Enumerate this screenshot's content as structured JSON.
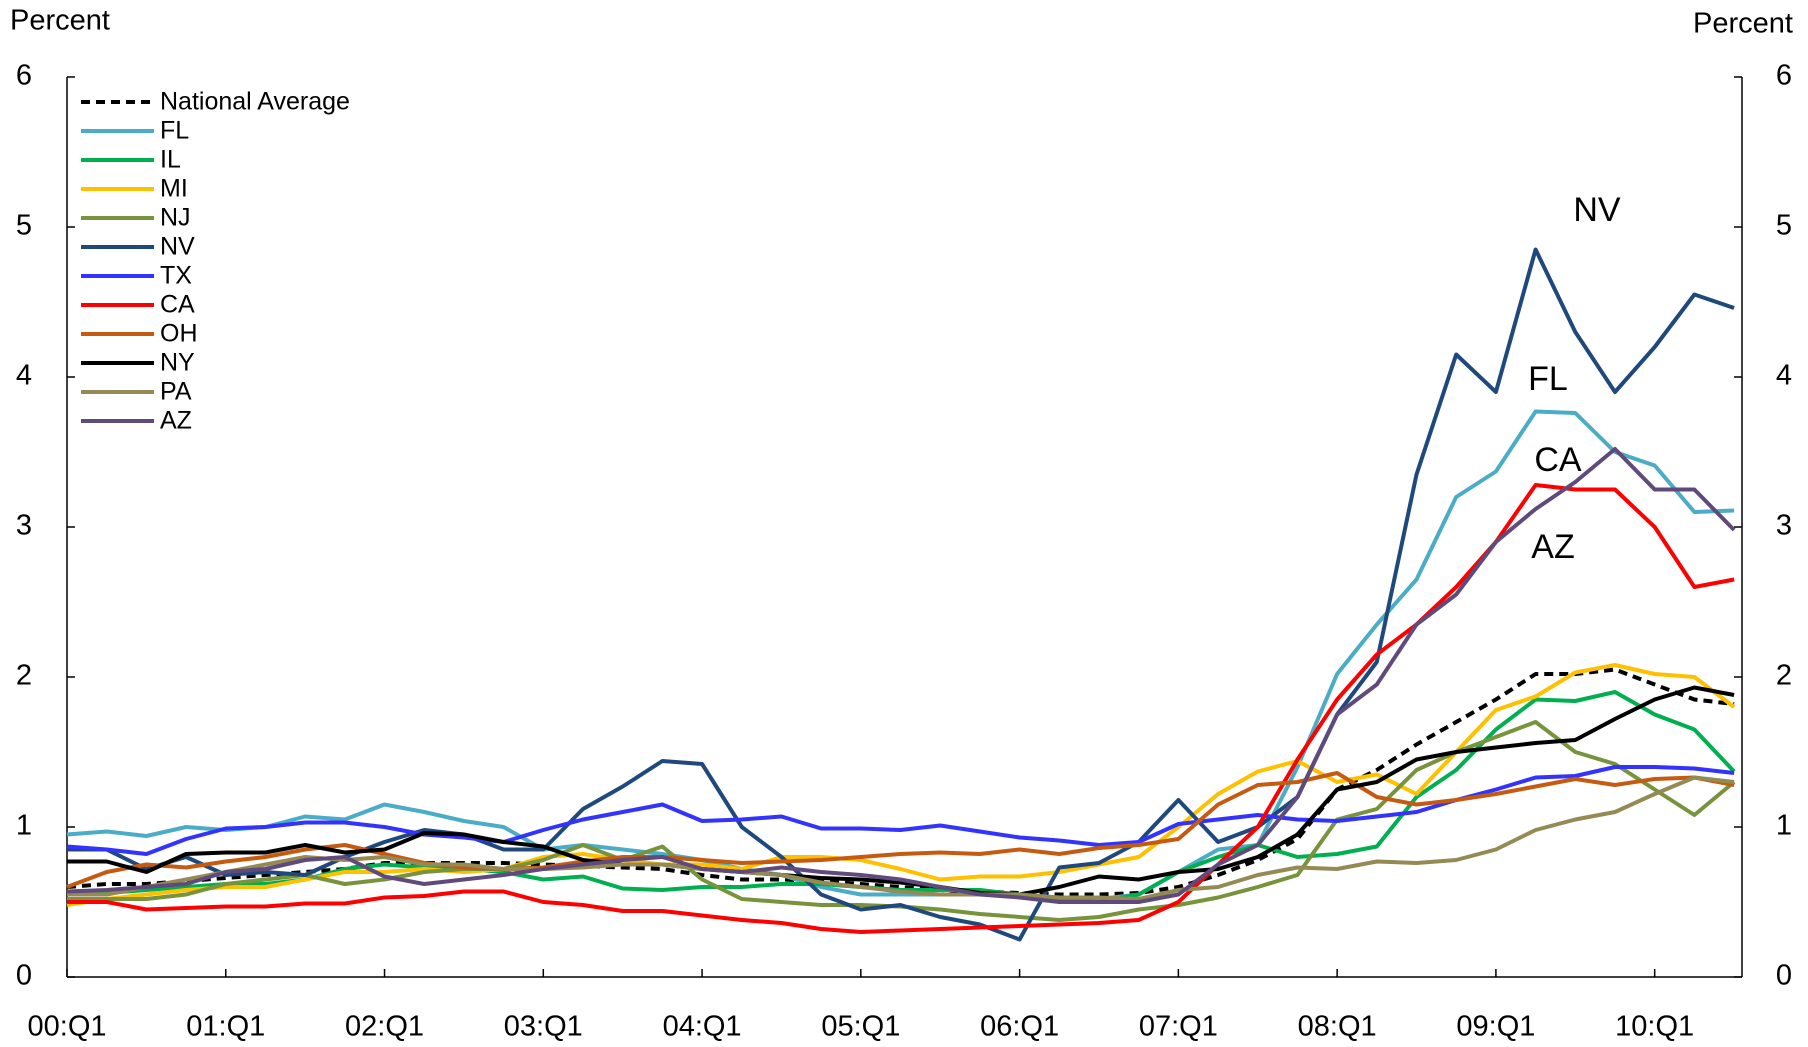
{
  "chart_data": {
    "type": "line",
    "y_label": "Percent",
    "y2_label": "Percent",
    "categories": [
      "00:Q1",
      null,
      null,
      null,
      "01:Q1",
      null,
      null,
      null,
      "02:Q1",
      null,
      null,
      null,
      "03:Q1",
      null,
      null,
      null,
      "04:Q1",
      null,
      null,
      null,
      "05:Q1",
      null,
      null,
      null,
      "06:Q1",
      null,
      null,
      null,
      "07:Q1",
      null,
      null,
      null,
      "08:Q1",
      null,
      null,
      null,
      "09:Q1",
      null,
      null,
      null,
      "10:Q1",
      null,
      null
    ],
    "ylim": [
      0,
      6
    ],
    "yticks": [
      0,
      1,
      2,
      3,
      4,
      5,
      6
    ],
    "y2lim": [
      0,
      6
    ],
    "y2ticks": [
      0,
      1,
      2,
      3,
      4,
      5,
      6
    ],
    "legend": "upper left",
    "series": [
      {
        "name": "National Average",
        "color": "#000000",
        "dashed": true,
        "values": [
          0.6,
          0.62,
          0.62,
          0.64,
          0.66,
          0.68,
          0.7,
          0.72,
          0.76,
          0.76,
          0.76,
          0.76,
          0.75,
          0.74,
          0.73,
          0.72,
          0.68,
          0.65,
          0.65,
          0.64,
          0.62,
          0.6,
          0.58,
          0.57,
          0.56,
          0.55,
          0.55,
          0.56,
          0.6,
          0.68,
          0.78,
          0.92,
          1.25,
          1.38,
          1.55,
          1.7,
          1.85,
          2.02,
          2.02,
          2.05,
          1.95,
          1.85,
          1.82
        ]
      },
      {
        "name": "FL",
        "color": "#4bacc6",
        "values": [
          0.95,
          0.97,
          0.94,
          1.0,
          0.98,
          1.0,
          1.07,
          1.05,
          1.15,
          1.1,
          1.04,
          1.0,
          0.85,
          0.88,
          0.85,
          0.82,
          0.78,
          0.72,
          0.68,
          0.6,
          0.55,
          0.55,
          0.55,
          0.55,
          0.55,
          0.52,
          0.52,
          0.55,
          0.7,
          0.85,
          0.88,
          1.4,
          2.02,
          2.35,
          2.65,
          3.2,
          3.37,
          3.77,
          3.76,
          3.5,
          3.41,
          3.1,
          3.11
        ]
      },
      {
        "name": "IL",
        "color": "#00b050",
        "values": [
          0.55,
          0.56,
          0.58,
          0.6,
          0.62,
          0.62,
          0.65,
          0.72,
          0.75,
          0.73,
          0.72,
          0.7,
          0.65,
          0.67,
          0.59,
          0.58,
          0.6,
          0.6,
          0.62,
          0.62,
          0.6,
          0.58,
          0.58,
          0.58,
          0.55,
          0.52,
          0.5,
          0.55,
          0.7,
          0.8,
          0.88,
          0.8,
          0.82,
          0.87,
          1.2,
          1.38,
          1.65,
          1.85,
          1.84,
          1.9,
          1.75,
          1.65,
          1.37
        ]
      },
      {
        "name": "MI",
        "color": "#ffc000",
        "values": [
          0.48,
          0.52,
          0.55,
          0.58,
          0.6,
          0.6,
          0.65,
          0.7,
          0.7,
          0.72,
          0.7,
          0.72,
          0.8,
          0.82,
          0.78,
          0.75,
          0.75,
          0.72,
          0.8,
          0.8,
          0.78,
          0.72,
          0.65,
          0.67,
          0.67,
          0.7,
          0.75,
          0.8,
          1.0,
          1.22,
          1.37,
          1.44,
          1.3,
          1.35,
          1.22,
          1.5,
          1.78,
          1.87,
          2.03,
          2.08,
          2.02,
          2.0,
          1.8
        ]
      },
      {
        "name": "NJ",
        "color": "#77933c",
        "values": [
          0.52,
          0.52,
          0.52,
          0.55,
          0.62,
          0.65,
          0.68,
          0.62,
          0.65,
          0.7,
          0.72,
          0.72,
          0.78,
          0.88,
          0.78,
          0.87,
          0.65,
          0.52,
          0.5,
          0.48,
          0.48,
          0.47,
          0.45,
          0.42,
          0.4,
          0.38,
          0.4,
          0.45,
          0.48,
          0.53,
          0.6,
          0.68,
          1.05,
          1.12,
          1.38,
          1.5,
          1.6,
          1.7,
          1.5,
          1.42,
          1.25,
          1.08,
          1.3
        ]
      },
      {
        "name": "NV",
        "color": "#1f497d",
        "values": [
          0.85,
          0.85,
          0.72,
          0.8,
          0.68,
          0.7,
          0.68,
          0.8,
          0.9,
          0.98,
          0.95,
          0.85,
          0.85,
          1.12,
          1.27,
          1.44,
          1.42,
          1.0,
          0.8,
          0.55,
          0.45,
          0.48,
          0.4,
          0.35,
          0.25,
          0.73,
          0.76,
          0.9,
          1.18,
          0.9,
          1.0,
          1.2,
          1.75,
          2.1,
          3.35,
          4.15,
          3.9,
          4.85,
          4.3,
          3.9,
          4.2,
          4.55,
          4.46
        ]
      },
      {
        "name": "TX",
        "color": "#3333ff",
        "values": [
          0.87,
          0.85,
          0.82,
          0.92,
          0.99,
          1.0,
          1.03,
          1.03,
          1.0,
          0.95,
          0.93,
          0.9,
          0.98,
          1.05,
          1.1,
          1.15,
          1.04,
          1.05,
          1.07,
          0.99,
          0.99,
          0.98,
          1.01,
          0.97,
          0.93,
          0.91,
          0.88,
          0.9,
          1.02,
          1.05,
          1.08,
          1.05,
          1.04,
          1.07,
          1.1,
          1.18,
          1.25,
          1.33,
          1.34,
          1.4,
          1.4,
          1.39,
          1.36
        ]
      },
      {
        "name": "CA",
        "color": "#ff0000",
        "values": [
          0.5,
          0.5,
          0.45,
          0.46,
          0.47,
          0.47,
          0.49,
          0.49,
          0.53,
          0.54,
          0.57,
          0.57,
          0.5,
          0.48,
          0.44,
          0.44,
          0.41,
          0.38,
          0.36,
          0.32,
          0.3,
          0.31,
          0.32,
          0.33,
          0.34,
          0.35,
          0.36,
          0.38,
          0.5,
          0.75,
          1.0,
          1.45,
          1.85,
          2.15,
          2.35,
          2.6,
          2.9,
          3.28,
          3.25,
          3.25,
          3.0,
          2.6,
          2.65
        ]
      },
      {
        "name": "OH",
        "color": "#c55a11",
        "values": [
          0.6,
          0.7,
          0.75,
          0.73,
          0.77,
          0.8,
          0.85,
          0.88,
          0.82,
          0.76,
          0.73,
          0.72,
          0.73,
          0.77,
          0.8,
          0.8,
          0.78,
          0.76,
          0.77,
          0.78,
          0.8,
          0.82,
          0.83,
          0.82,
          0.85,
          0.82,
          0.86,
          0.88,
          0.92,
          1.15,
          1.28,
          1.3,
          1.36,
          1.2,
          1.15,
          1.18,
          1.22,
          1.27,
          1.32,
          1.28,
          1.32,
          1.33,
          1.28
        ]
      },
      {
        "name": "NY",
        "color": "#000000",
        "values": [
          0.77,
          0.77,
          0.7,
          0.82,
          0.83,
          0.83,
          0.88,
          0.83,
          0.85,
          0.96,
          0.95,
          0.9,
          0.87,
          0.78,
          0.75,
          0.75,
          0.72,
          0.7,
          0.68,
          0.66,
          0.65,
          0.63,
          0.6,
          0.56,
          0.55,
          0.6,
          0.67,
          0.65,
          0.7,
          0.72,
          0.8,
          0.95,
          1.25,
          1.3,
          1.45,
          1.5,
          1.53,
          1.56,
          1.58,
          1.72,
          1.85,
          1.93,
          1.88
        ]
      },
      {
        "name": "PA",
        "color": "#948a54",
        "values": [
          0.55,
          0.55,
          0.6,
          0.65,
          0.7,
          0.75,
          0.8,
          0.78,
          0.8,
          0.75,
          0.75,
          0.72,
          0.72,
          0.73,
          0.75,
          0.75,
          0.72,
          0.7,
          0.68,
          0.63,
          0.6,
          0.57,
          0.55,
          0.55,
          0.55,
          0.53,
          0.53,
          0.52,
          0.58,
          0.6,
          0.68,
          0.73,
          0.72,
          0.77,
          0.76,
          0.78,
          0.85,
          0.98,
          1.05,
          1.1,
          1.22,
          1.33,
          1.3
        ]
      },
      {
        "name": "AZ",
        "color": "#604a7b",
        "values": [
          0.57,
          0.58,
          0.6,
          0.62,
          0.7,
          0.72,
          0.78,
          0.8,
          0.67,
          0.62,
          0.65,
          0.68,
          0.72,
          0.75,
          0.78,
          0.8,
          0.72,
          0.7,
          0.73,
          0.7,
          0.68,
          0.65,
          0.6,
          0.55,
          0.53,
          0.5,
          0.5,
          0.5,
          0.55,
          0.75,
          0.88,
          1.2,
          1.75,
          1.95,
          2.35,
          2.55,
          2.9,
          3.12,
          3.3,
          3.52,
          3.25,
          3.25,
          2.98
        ]
      }
    ],
    "annotations": [
      {
        "text": "NV",
        "color": "#1f497d"
      },
      {
        "text": "FL",
        "color": "#4bacc6"
      },
      {
        "text": "CA",
        "color": "#ff0000"
      },
      {
        "text": "AZ",
        "color": "#604a7b"
      }
    ]
  }
}
